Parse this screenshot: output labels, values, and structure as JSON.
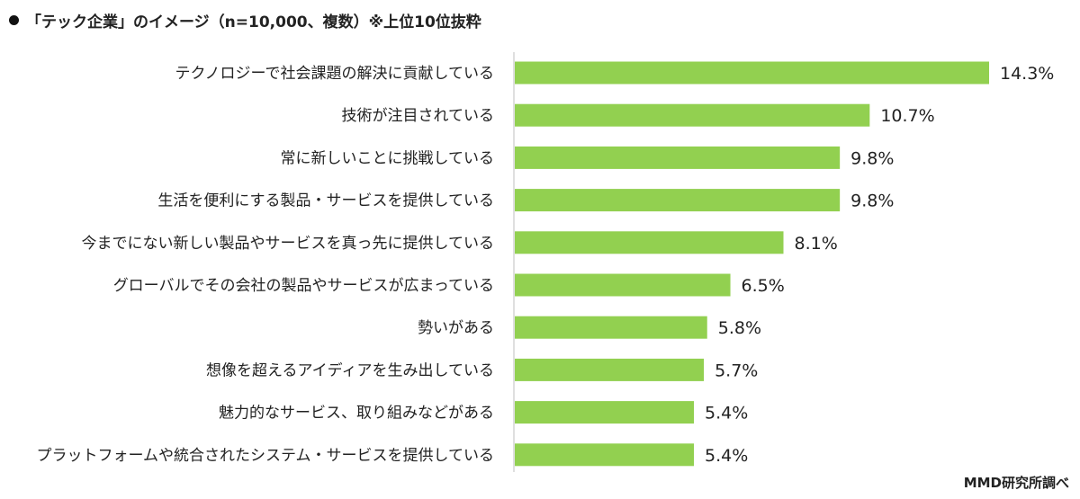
{
  "header": {
    "title": "「テック企業」のイメージ（n=10,000、複数）※上位10位抜粋"
  },
  "footer": {
    "source": "MMD研究所調べ"
  },
  "colors": {
    "bar": "#92D050",
    "axis": "#bfbfbf",
    "text": "#222222"
  },
  "chart_data": {
    "type": "bar",
    "orientation": "horizontal",
    "categories": [
      "テクノロジーで社会課題の解決に貢献している",
      "技術が注目されている",
      "常に新しいことに挑戦している",
      "生活を便利にする製品・サービスを提供している",
      "今までにない新しい製品やサービスを真っ先に提供している",
      "グローバルでその会社の製品やサービスが広まっている",
      "勢いがある",
      "想像を超えるアイディアを生み出している",
      "魅力的なサービス、取り組みなどがある",
      "プラットフォームや統合されたシステム・サービスを提供している"
    ],
    "values": [
      14.3,
      10.7,
      9.8,
      9.8,
      8.1,
      6.5,
      5.8,
      5.7,
      5.4,
      5.4
    ],
    "value_labels": [
      "14.3%",
      "10.7%",
      "9.8%",
      "9.8%",
      "8.1%",
      "6.5%",
      "5.8%",
      "5.7%",
      "5.4%",
      "5.4%"
    ],
    "title": "「テック企業」のイメージ（n=10,000、複数）※上位10位抜粋",
    "xlabel": "",
    "ylabel": "",
    "xlim": [
      0,
      14.3
    ],
    "grid": false,
    "legend": "none"
  }
}
